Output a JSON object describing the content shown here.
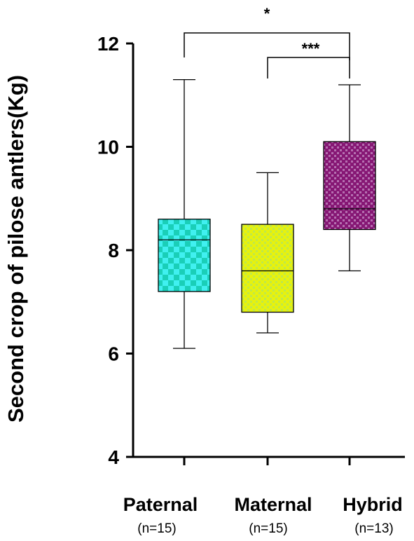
{
  "chart_data": {
    "type": "boxplot",
    "ylabel": "Second crop of pilose antlers(Kg)",
    "ylim": [
      4,
      12
    ],
    "yticks": [
      4,
      6,
      8,
      10,
      12
    ],
    "grid": false,
    "groups": [
      {
        "category": "Paternal",
        "n_label": "(n=15)",
        "min": 6.1,
        "q1": 7.2,
        "median": 8.2,
        "q3": 8.6,
        "max": 11.3,
        "color": "#21E0D8",
        "pattern": "checker"
      },
      {
        "category": "Maternal",
        "n_label": "(n=15)",
        "min": 6.4,
        "q1": 6.8,
        "median": 7.6,
        "q3": 8.5,
        "max": 9.5,
        "color": "#E8F210",
        "pattern": "dots"
      },
      {
        "category": "Hybrid",
        "n_label": "(n=13)",
        "min": 7.6,
        "q1": 8.4,
        "median": 8.8,
        "q3": 10.1,
        "max": 11.2,
        "color": "#8A1A7E",
        "pattern": "dots"
      }
    ],
    "significance": [
      {
        "from": 0,
        "to": 2,
        "label": "*"
      },
      {
        "from": 1,
        "to": 2,
        "label": "***"
      }
    ]
  }
}
